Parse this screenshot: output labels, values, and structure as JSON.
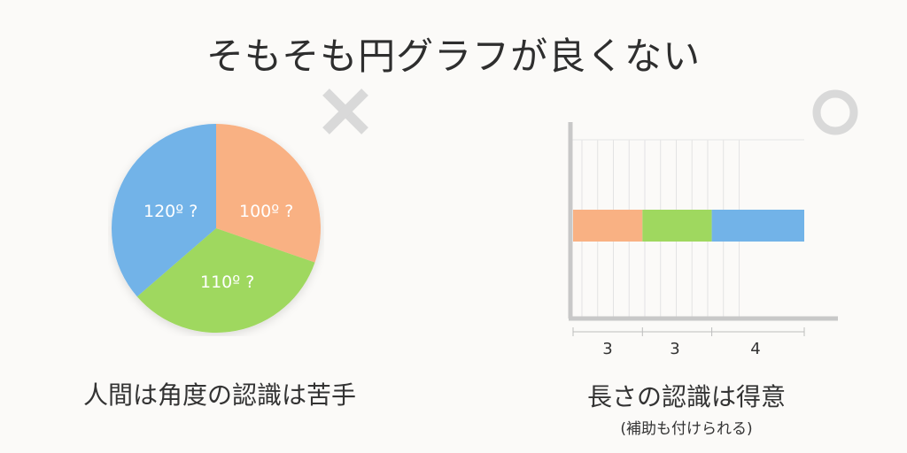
{
  "title": "そもそも円グラフが良くない",
  "marks": {
    "bad": "x-mark",
    "good": "circle-mark"
  },
  "left_panel": {
    "caption": "人間は角度の認識は苦手",
    "slice_labels": [
      "100º ?",
      "110º ?",
      "120º ?"
    ]
  },
  "right_panel": {
    "caption": "長さの認識は得意",
    "subcaption": "(補助も付けられる)",
    "segment_labels": [
      "3",
      "3",
      "4"
    ]
  },
  "colors": {
    "orange": "#f9b183",
    "green": "#9fd85f",
    "blue": "#72b3e8",
    "mark": "#d9d9d9"
  },
  "chart_data": [
    {
      "type": "pie",
      "categories": [
        "100º ?",
        "110º ?",
        "120º ?"
      ],
      "values": [
        100,
        110,
        120
      ],
      "colors": [
        "#f9b183",
        "#9fd85f",
        "#72b3e8"
      ]
    },
    {
      "type": "bar",
      "orientation": "horizontal-stacked",
      "categories": [
        "3",
        "3",
        "4"
      ],
      "values": [
        3,
        3,
        4
      ],
      "colors": [
        "#f9b183",
        "#9fd85f",
        "#72b3e8"
      ],
      "grid": true
    }
  ]
}
